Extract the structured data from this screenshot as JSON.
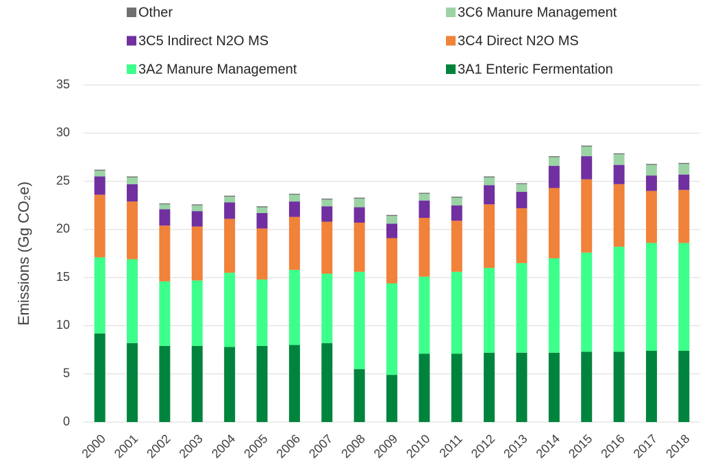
{
  "chart_data": {
    "type": "stacked_bar",
    "y_axis_label": "Emissions (Gg CO₂e)",
    "categories": [
      "2000",
      "2001",
      "2002",
      "2003",
      "2004",
      "2005",
      "2006",
      "2007",
      "2008",
      "2009",
      "2010",
      "2011",
      "2012",
      "2013",
      "2014",
      "2015",
      "2016",
      "2017",
      "2018"
    ],
    "series": [
      {
        "name": "3A1 Enteric Fermentation",
        "color": "#00843d",
        "values": [
          9.2,
          8.2,
          7.9,
          7.9,
          7.8,
          7.9,
          8.0,
          8.2,
          5.5,
          4.9,
          7.1,
          7.1,
          7.2,
          7.2,
          7.2,
          7.3,
          7.3,
          7.4,
          7.4
        ]
      },
      {
        "name": "3A2 Manure Management",
        "color": "#3dff8c",
        "values": [
          7.9,
          8.7,
          6.7,
          6.8,
          7.7,
          6.9,
          7.8,
          7.2,
          10.1,
          9.5,
          8.0,
          8.5,
          8.8,
          9.3,
          9.8,
          10.3,
          10.9,
          11.2,
          11.2
        ]
      },
      {
        "name": "3C4 Direct N2O MS",
        "color": "#f0823a",
        "values": [
          6.5,
          6.0,
          5.8,
          5.6,
          5.6,
          5.3,
          5.5,
          5.4,
          5.1,
          4.7,
          6.1,
          5.3,
          6.6,
          5.7,
          7.3,
          7.6,
          6.5,
          5.4,
          5.5
        ]
      },
      {
        "name": "3C5 Indirect N2O MS",
        "color": "#7030a0",
        "values": [
          1.9,
          1.8,
          1.7,
          1.6,
          1.7,
          1.6,
          1.6,
          1.6,
          1.6,
          1.5,
          1.8,
          1.6,
          2.0,
          1.7,
          2.3,
          2.4,
          2.0,
          1.6,
          1.6
        ]
      },
      {
        "name": "3C6 Manure Management",
        "color": "#9bd3a5",
        "values": [
          0.6,
          0.7,
          0.5,
          0.6,
          0.6,
          0.6,
          0.7,
          0.7,
          0.9,
          0.8,
          0.7,
          0.8,
          0.8,
          0.8,
          0.9,
          1.0,
          1.1,
          1.1,
          1.1
        ]
      },
      {
        "name": "Other",
        "color": "#707070",
        "values": [
          0.1,
          0.1,
          0.1,
          0.1,
          0.1,
          0.1,
          0.1,
          0.1,
          0.1,
          0.1,
          0.1,
          0.1,
          0.1,
          0.1,
          0.1,
          0.1,
          0.1,
          0.1,
          0.1
        ]
      }
    ],
    "ylim": [
      0,
      35
    ],
    "yticks": [
      0,
      5,
      10,
      15,
      20,
      25,
      30,
      35
    ],
    "grid": true
  }
}
